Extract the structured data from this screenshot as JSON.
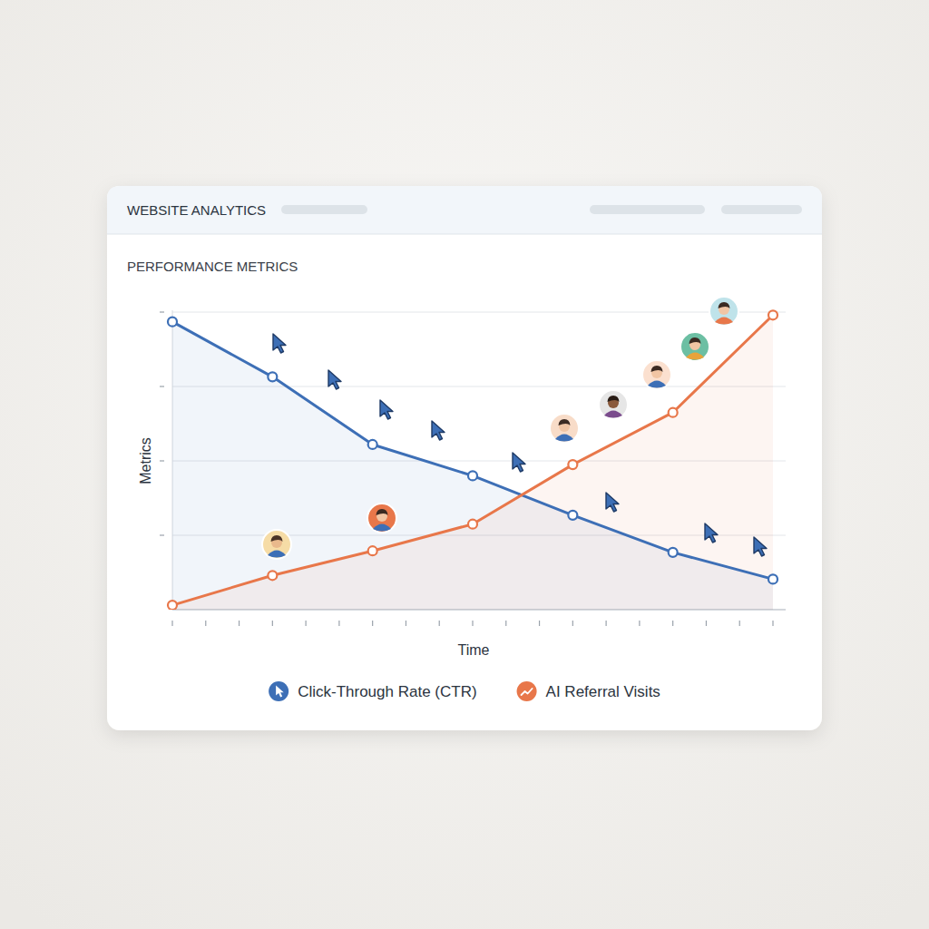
{
  "chart_data": {
    "type": "line",
    "title": "WEBSITE ANALYTICS",
    "subtitle": "PERFORMANCE METRICS",
    "x_label": "Time",
    "y_label": "Metrics",
    "x": [
      0,
      3,
      6,
      9,
      12,
      15,
      18
    ],
    "series": [
      {
        "name": "Click-Through Rate (CTR)",
        "color": "#3d6fb6",
        "marker": "circle",
        "line_style": "solid",
        "values": [
          3.87,
          3.13,
          2.22,
          1.8,
          1.27,
          0.77,
          0.41
        ]
      },
      {
        "name": "AI Referral Visits",
        "color": "#e8774a",
        "marker": "circle",
        "line_style": "solid",
        "values": [
          0.06,
          0.46,
          0.79,
          1.15,
          1.95,
          2.65,
          3.96
        ]
      }
    ],
    "xlim": [
      0,
      18
    ],
    "xticks": [
      0,
      1,
      2,
      3,
      4,
      5,
      6,
      7,
      8,
      9,
      10,
      11,
      12,
      13,
      14,
      15,
      16,
      17,
      18
    ],
    "ylim": [
      0,
      4
    ],
    "yticks": [
      1,
      2,
      3,
      4
    ],
    "grid": true,
    "legend": "bottom",
    "tick_labels": false
  }
}
